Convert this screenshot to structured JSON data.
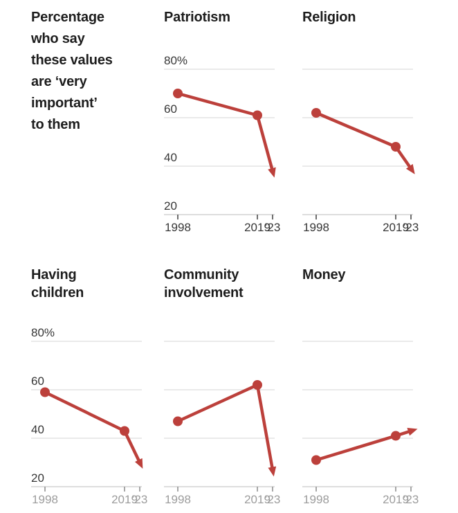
{
  "intro": {
    "text": "Percentage\nwho say\nthese values\nare ‘very\nimportant’\nto them"
  },
  "colors": {
    "line": "#bc403b",
    "grid": "#e4e4e4",
    "axis": "#d2d2d2",
    "title": "#1d1d1d",
    "label_dark": "#363636",
    "label_gray": "#9c9c9c",
    "tick_dark": "#4a4a4a",
    "tick_gray": "#919191",
    "background": "#ffffff"
  },
  "axis": {
    "ylim": [
      20,
      85
    ],
    "grid": "on",
    "y_gridlines": [
      80,
      60,
      40
    ],
    "baseline_value": 20,
    "y_ticks": [
      {
        "value": 80,
        "label": "80%"
      },
      {
        "value": 60,
        "label": "60"
      },
      {
        "value": 40,
        "label": "40"
      },
      {
        "value": 20,
        "label": "20"
      }
    ],
    "x_ticks": [
      {
        "year": 1998,
        "label": "1998"
      },
      {
        "year": 2019,
        "label": "2019"
      },
      {
        "year": 2023,
        "label": "’23"
      }
    ]
  },
  "chart_data": [
    {
      "type": "line",
      "slug": "patriotism",
      "title": "Patriotism",
      "row": 1,
      "col": 2,
      "show_y_labels": true,
      "x_label_style": "dark",
      "x": [
        1998,
        2019,
        2023
      ],
      "values": [
        70,
        61,
        38
      ],
      "marker": "dot-dot-arrow"
    },
    {
      "type": "line",
      "slug": "religion",
      "title": "Religion",
      "row": 1,
      "col": 3,
      "show_y_labels": false,
      "x_label_style": "dark",
      "x": [
        1998,
        2019,
        2023
      ],
      "values": [
        62,
        48,
        39
      ],
      "marker": "dot-dot-arrow"
    },
    {
      "type": "line",
      "slug": "having-children",
      "title": "Having\nchildren",
      "row": 2,
      "col": 1,
      "show_y_labels": true,
      "x_label_style": "gray",
      "x": [
        1998,
        2019,
        2023
      ],
      "values": [
        59,
        43,
        30
      ],
      "marker": "dot-dot-arrow"
    },
    {
      "type": "line",
      "slug": "community-involvement",
      "title": "Community\ninvolvement",
      "row": 2,
      "col": 2,
      "show_y_labels": false,
      "x_label_style": "gray",
      "x": [
        1998,
        2019,
        2023
      ],
      "values": [
        47,
        62,
        27
      ],
      "marker": "dot-dot-arrow"
    },
    {
      "type": "line",
      "slug": "money",
      "title": "Money",
      "row": 2,
      "col": 3,
      "show_y_labels": false,
      "x_label_style": "gray",
      "x": [
        1998,
        2019,
        2023
      ],
      "values": [
        31,
        41,
        43
      ],
      "marker": "dot-dot-arrow"
    }
  ]
}
